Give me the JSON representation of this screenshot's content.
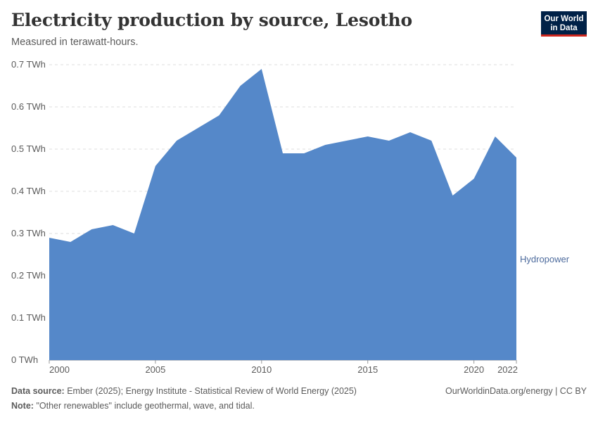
{
  "header": {
    "title": "Electricity production by source, Lesotho",
    "subtitle": "Measured in terawatt-hours.",
    "logo_line1": "Our World",
    "logo_line2": "in Data"
  },
  "footer": {
    "source_label": "Data source:",
    "source_text": "Ember (2025); Energy Institute - Statistical Review of World Energy (2025)",
    "note_label": "Note:",
    "note_text": "\"Other renewables\" include geothermal, wave, and tidal.",
    "credit": "OurWorldinData.org/energy | CC BY"
  },
  "colors": {
    "hydropower": "#5588c9",
    "grid": "#dddddd",
    "label": "#4c6a9c"
  },
  "chart_data": {
    "type": "area",
    "title": "Electricity production by source, Lesotho",
    "subtitle": "Measured in terawatt-hours.",
    "ylim": [
      0,
      0.7
    ],
    "xlim": [
      2000,
      2022
    ],
    "y_ticks": [
      {
        "value": 0,
        "label": "0 TWh"
      },
      {
        "value": 0.1,
        "label": "0.1 TWh"
      },
      {
        "value": 0.2,
        "label": "0.2 TWh"
      },
      {
        "value": 0.3,
        "label": "0.3 TWh"
      },
      {
        "value": 0.4,
        "label": "0.4 TWh"
      },
      {
        "value": 0.5,
        "label": "0.5 TWh"
      },
      {
        "value": 0.6,
        "label": "0.6 TWh"
      },
      {
        "value": 0.7,
        "label": "0.7 TWh"
      }
    ],
    "x_ticks": [
      2000,
      2005,
      2010,
      2015,
      2020,
      2022
    ],
    "grid": true,
    "x": [
      2000,
      2001,
      2002,
      2003,
      2004,
      2005,
      2006,
      2007,
      2008,
      2009,
      2010,
      2011,
      2012,
      2013,
      2014,
      2015,
      2016,
      2017,
      2018,
      2019,
      2020,
      2021,
      2022
    ],
    "series": [
      {
        "name": "Hydropower",
        "values": [
          0.29,
          0.28,
          0.31,
          0.32,
          0.3,
          0.46,
          0.52,
          0.55,
          0.58,
          0.65,
          0.69,
          0.49,
          0.49,
          0.51,
          0.52,
          0.53,
          0.52,
          0.54,
          0.52,
          0.39,
          0.43,
          0.53,
          0.48
        ]
      }
    ]
  }
}
